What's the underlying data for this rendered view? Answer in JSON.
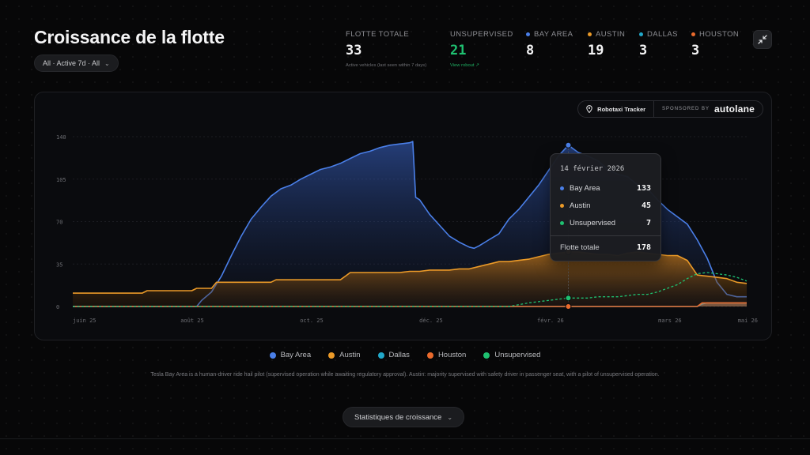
{
  "header": {
    "title": "Croissance de la flotte",
    "filter_label": "All · Active 7d · All"
  },
  "stats": {
    "total": {
      "label": "FLOTTE TOTALE",
      "value": "33",
      "sub": "Active vehicles (last seen within 7 days)"
    },
    "unsupervised": {
      "label": "UNSUPERVISED",
      "value": "21",
      "link": "View robout ↗"
    },
    "cities": [
      {
        "label": "BAY AREA",
        "value": "8",
        "color": "#4a7fe8"
      },
      {
        "label": "AUSTIN",
        "value": "19",
        "color": "#eb9a28"
      },
      {
        "label": "DALLAS",
        "value": "3",
        "color": "#21a8c9"
      },
      {
        "label": "HOUSTON",
        "value": "3",
        "color": "#ea6a2c"
      }
    ]
  },
  "sponsor": {
    "tracker_label": "Robotaxi Tracker",
    "sponsored_label": "SPONSORED BY",
    "brand": "autolane"
  },
  "tooltip": {
    "date": "14 février 2026",
    "rows": [
      {
        "label": "Bay Area",
        "value": "133",
        "color": "#4a7fe8"
      },
      {
        "label": "Austin",
        "value": "45",
        "color": "#eb9a28"
      },
      {
        "label": "Unsupervised",
        "value": "7",
        "color": "#1fc171"
      }
    ],
    "total_label": "Flotte totale",
    "total_value": "178"
  },
  "legend": [
    {
      "label": "Bay Area",
      "color": "#4a7fe8"
    },
    {
      "label": "Austin",
      "color": "#eb9a28"
    },
    {
      "label": "Dallas",
      "color": "#21a8c9"
    },
    {
      "label": "Houston",
      "color": "#ea6a2c"
    },
    {
      "label": "Unsupervised",
      "color": "#1fc171"
    }
  ],
  "footnote": "Tesla Bay Area is a human-driver ride hail pilot (supervised operation while awaiting regulatory approval). Austin: majority supervised with safety driver in passenger seat, with a pilot of unsupervised operation.",
  "growth_button_label": "Statistiques de croissance",
  "chart_data": {
    "type": "area",
    "x_ticks": [
      "juin 25",
      "août 25",
      "oct. 25",
      "déc. 25",
      "févr. 26",
      "mars 26",
      "mai 26"
    ],
    "y_ticks": [
      0,
      35,
      70,
      105,
      140
    ],
    "ylim": [
      0,
      140
    ],
    "grid": true,
    "series": [
      {
        "name": "Bay Area",
        "color": "#4a7fe8",
        "fill": true,
        "points": [
          [
            0,
            0
          ],
          [
            12.5,
            0
          ],
          [
            13,
            5
          ],
          [
            14,
            12
          ],
          [
            15,
            25
          ],
          [
            16,
            42
          ],
          [
            17,
            58
          ],
          [
            18,
            72
          ],
          [
            19,
            82
          ],
          [
            20,
            91
          ],
          [
            21,
            97
          ],
          [
            22,
            100
          ],
          [
            23,
            105
          ],
          [
            24,
            109
          ],
          [
            25,
            113
          ],
          [
            26,
            115
          ],
          [
            27,
            118
          ],
          [
            28,
            122
          ],
          [
            29,
            126
          ],
          [
            30,
            128
          ],
          [
            31,
            131
          ],
          [
            32,
            133
          ],
          [
            33,
            134
          ],
          [
            34,
            135
          ],
          [
            34.3,
            136
          ],
          [
            34.6,
            90
          ],
          [
            35,
            88
          ],
          [
            36,
            76
          ],
          [
            37,
            67
          ],
          [
            38,
            58
          ],
          [
            39,
            53
          ],
          [
            40,
            49
          ],
          [
            40.5,
            48
          ],
          [
            41,
            50
          ],
          [
            42,
            55
          ],
          [
            43,
            60
          ],
          [
            44,
            72
          ],
          [
            45,
            80
          ],
          [
            46,
            90
          ],
          [
            47,
            100
          ],
          [
            48,
            112
          ],
          [
            49,
            124
          ],
          [
            50,
            133
          ],
          [
            50.5,
            130
          ],
          [
            51,
            127
          ],
          [
            52,
            124
          ],
          [
            53,
            120
          ],
          [
            54,
            113
          ],
          [
            55,
            109
          ],
          [
            56,
            107
          ],
          [
            57,
            100
          ],
          [
            58,
            97
          ],
          [
            59,
            88
          ],
          [
            60,
            80
          ],
          [
            61,
            74
          ],
          [
            62,
            68
          ],
          [
            63,
            55
          ],
          [
            64,
            40
          ],
          [
            65,
            20
          ],
          [
            66,
            10
          ],
          [
            67,
            8
          ],
          [
            68,
            8
          ]
        ]
      },
      {
        "name": "Austin",
        "color": "#eb9a28",
        "fill": true,
        "points": [
          [
            0,
            11
          ],
          [
            7,
            11
          ],
          [
            7.5,
            13
          ],
          [
            12,
            13
          ],
          [
            12.5,
            15
          ],
          [
            14,
            15
          ],
          [
            14.5,
            20
          ],
          [
            20,
            20
          ],
          [
            20.5,
            22
          ],
          [
            27,
            22
          ],
          [
            27.5,
            25
          ],
          [
            28,
            28
          ],
          [
            33,
            28
          ],
          [
            34,
            29
          ],
          [
            35,
            29
          ],
          [
            36,
            30
          ],
          [
            37,
            30
          ],
          [
            38,
            30
          ],
          [
            39,
            31
          ],
          [
            40,
            31
          ],
          [
            41,
            33
          ],
          [
            42,
            35
          ],
          [
            43,
            37
          ],
          [
            44,
            37
          ],
          [
            45,
            38
          ],
          [
            46,
            39
          ],
          [
            47,
            41
          ],
          [
            48,
            43
          ],
          [
            49,
            44
          ],
          [
            50,
            45
          ],
          [
            51,
            45
          ],
          [
            52,
            44
          ],
          [
            53,
            43
          ],
          [
            54,
            43
          ],
          [
            55,
            42
          ],
          [
            56,
            44
          ],
          [
            57,
            45
          ],
          [
            58,
            44
          ],
          [
            59,
            43
          ],
          [
            60,
            42
          ],
          [
            61,
            42
          ],
          [
            62,
            38
          ],
          [
            63,
            26
          ],
          [
            64,
            25
          ],
          [
            65,
            24
          ],
          [
            66,
            23
          ],
          [
            67,
            20
          ],
          [
            68,
            19
          ]
        ]
      },
      {
        "name": "Dallas",
        "color": "#21a8c9",
        "fill": true,
        "points": [
          [
            0,
            0
          ],
          [
            63,
            0
          ],
          [
            63.5,
            2
          ],
          [
            64,
            3
          ],
          [
            68,
            3
          ]
        ]
      },
      {
        "name": "Houston",
        "color": "#ea6a2c",
        "fill": true,
        "points": [
          [
            0,
            0
          ],
          [
            63,
            0
          ],
          [
            63.5,
            3
          ],
          [
            64,
            3
          ],
          [
            68,
            3
          ]
        ]
      },
      {
        "name": "Unsupervised",
        "color": "#1fc171",
        "dashed": true,
        "points": [
          [
            0,
            0
          ],
          [
            40,
            0
          ],
          [
            44,
            0
          ],
          [
            46,
            3
          ],
          [
            47,
            4
          ],
          [
            48,
            5
          ],
          [
            49,
            6
          ],
          [
            50,
            7
          ],
          [
            51,
            7
          ],
          [
            52,
            7
          ],
          [
            53,
            8
          ],
          [
            54,
            8
          ],
          [
            55,
            8
          ],
          [
            56,
            9
          ],
          [
            57,
            10
          ],
          [
            58,
            10
          ],
          [
            59,
            12
          ],
          [
            60,
            15
          ],
          [
            61,
            18
          ],
          [
            62,
            23
          ],
          [
            63,
            27
          ],
          [
            64,
            28
          ],
          [
            65,
            27
          ],
          [
            66,
            26
          ],
          [
            67,
            24
          ],
          [
            68,
            21
          ]
        ]
      }
    ],
    "highlight": {
      "x": 50,
      "values": [
        133,
        45,
        7
      ]
    }
  }
}
